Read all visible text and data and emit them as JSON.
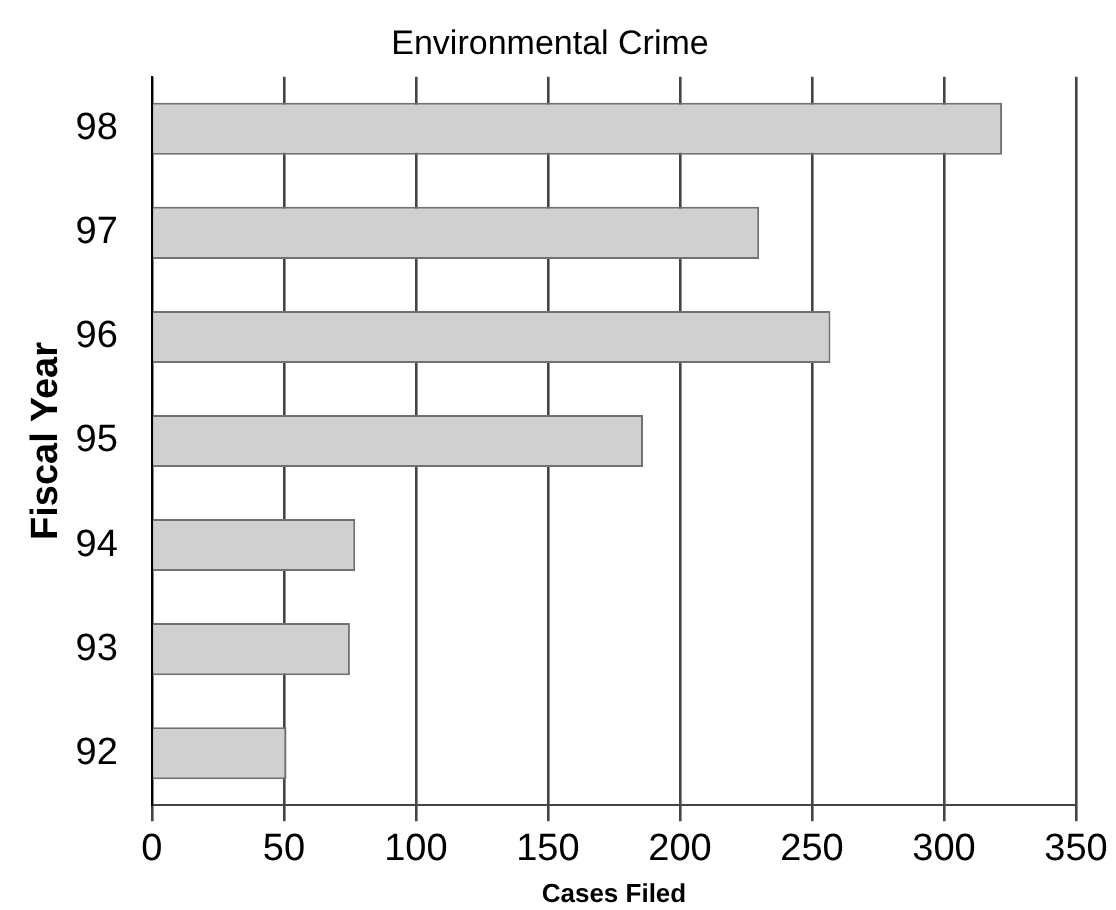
{
  "chart_data": {
    "type": "bar",
    "orientation": "horizontal",
    "title": "Environmental Crime",
    "xlabel": "Cases Filed",
    "ylabel": "Fiscal Year",
    "categories": [
      "98",
      "97",
      "96",
      "95",
      "94",
      "93",
      "92"
    ],
    "values": [
      322,
      230,
      257,
      186,
      77,
      75,
      51
    ],
    "color": "#d0d0d0",
    "xlim": [
      0,
      350
    ],
    "xticks": [
      0,
      50,
      100,
      150,
      200,
      250,
      300,
      350
    ],
    "grid": "x",
    "legend": false
  }
}
